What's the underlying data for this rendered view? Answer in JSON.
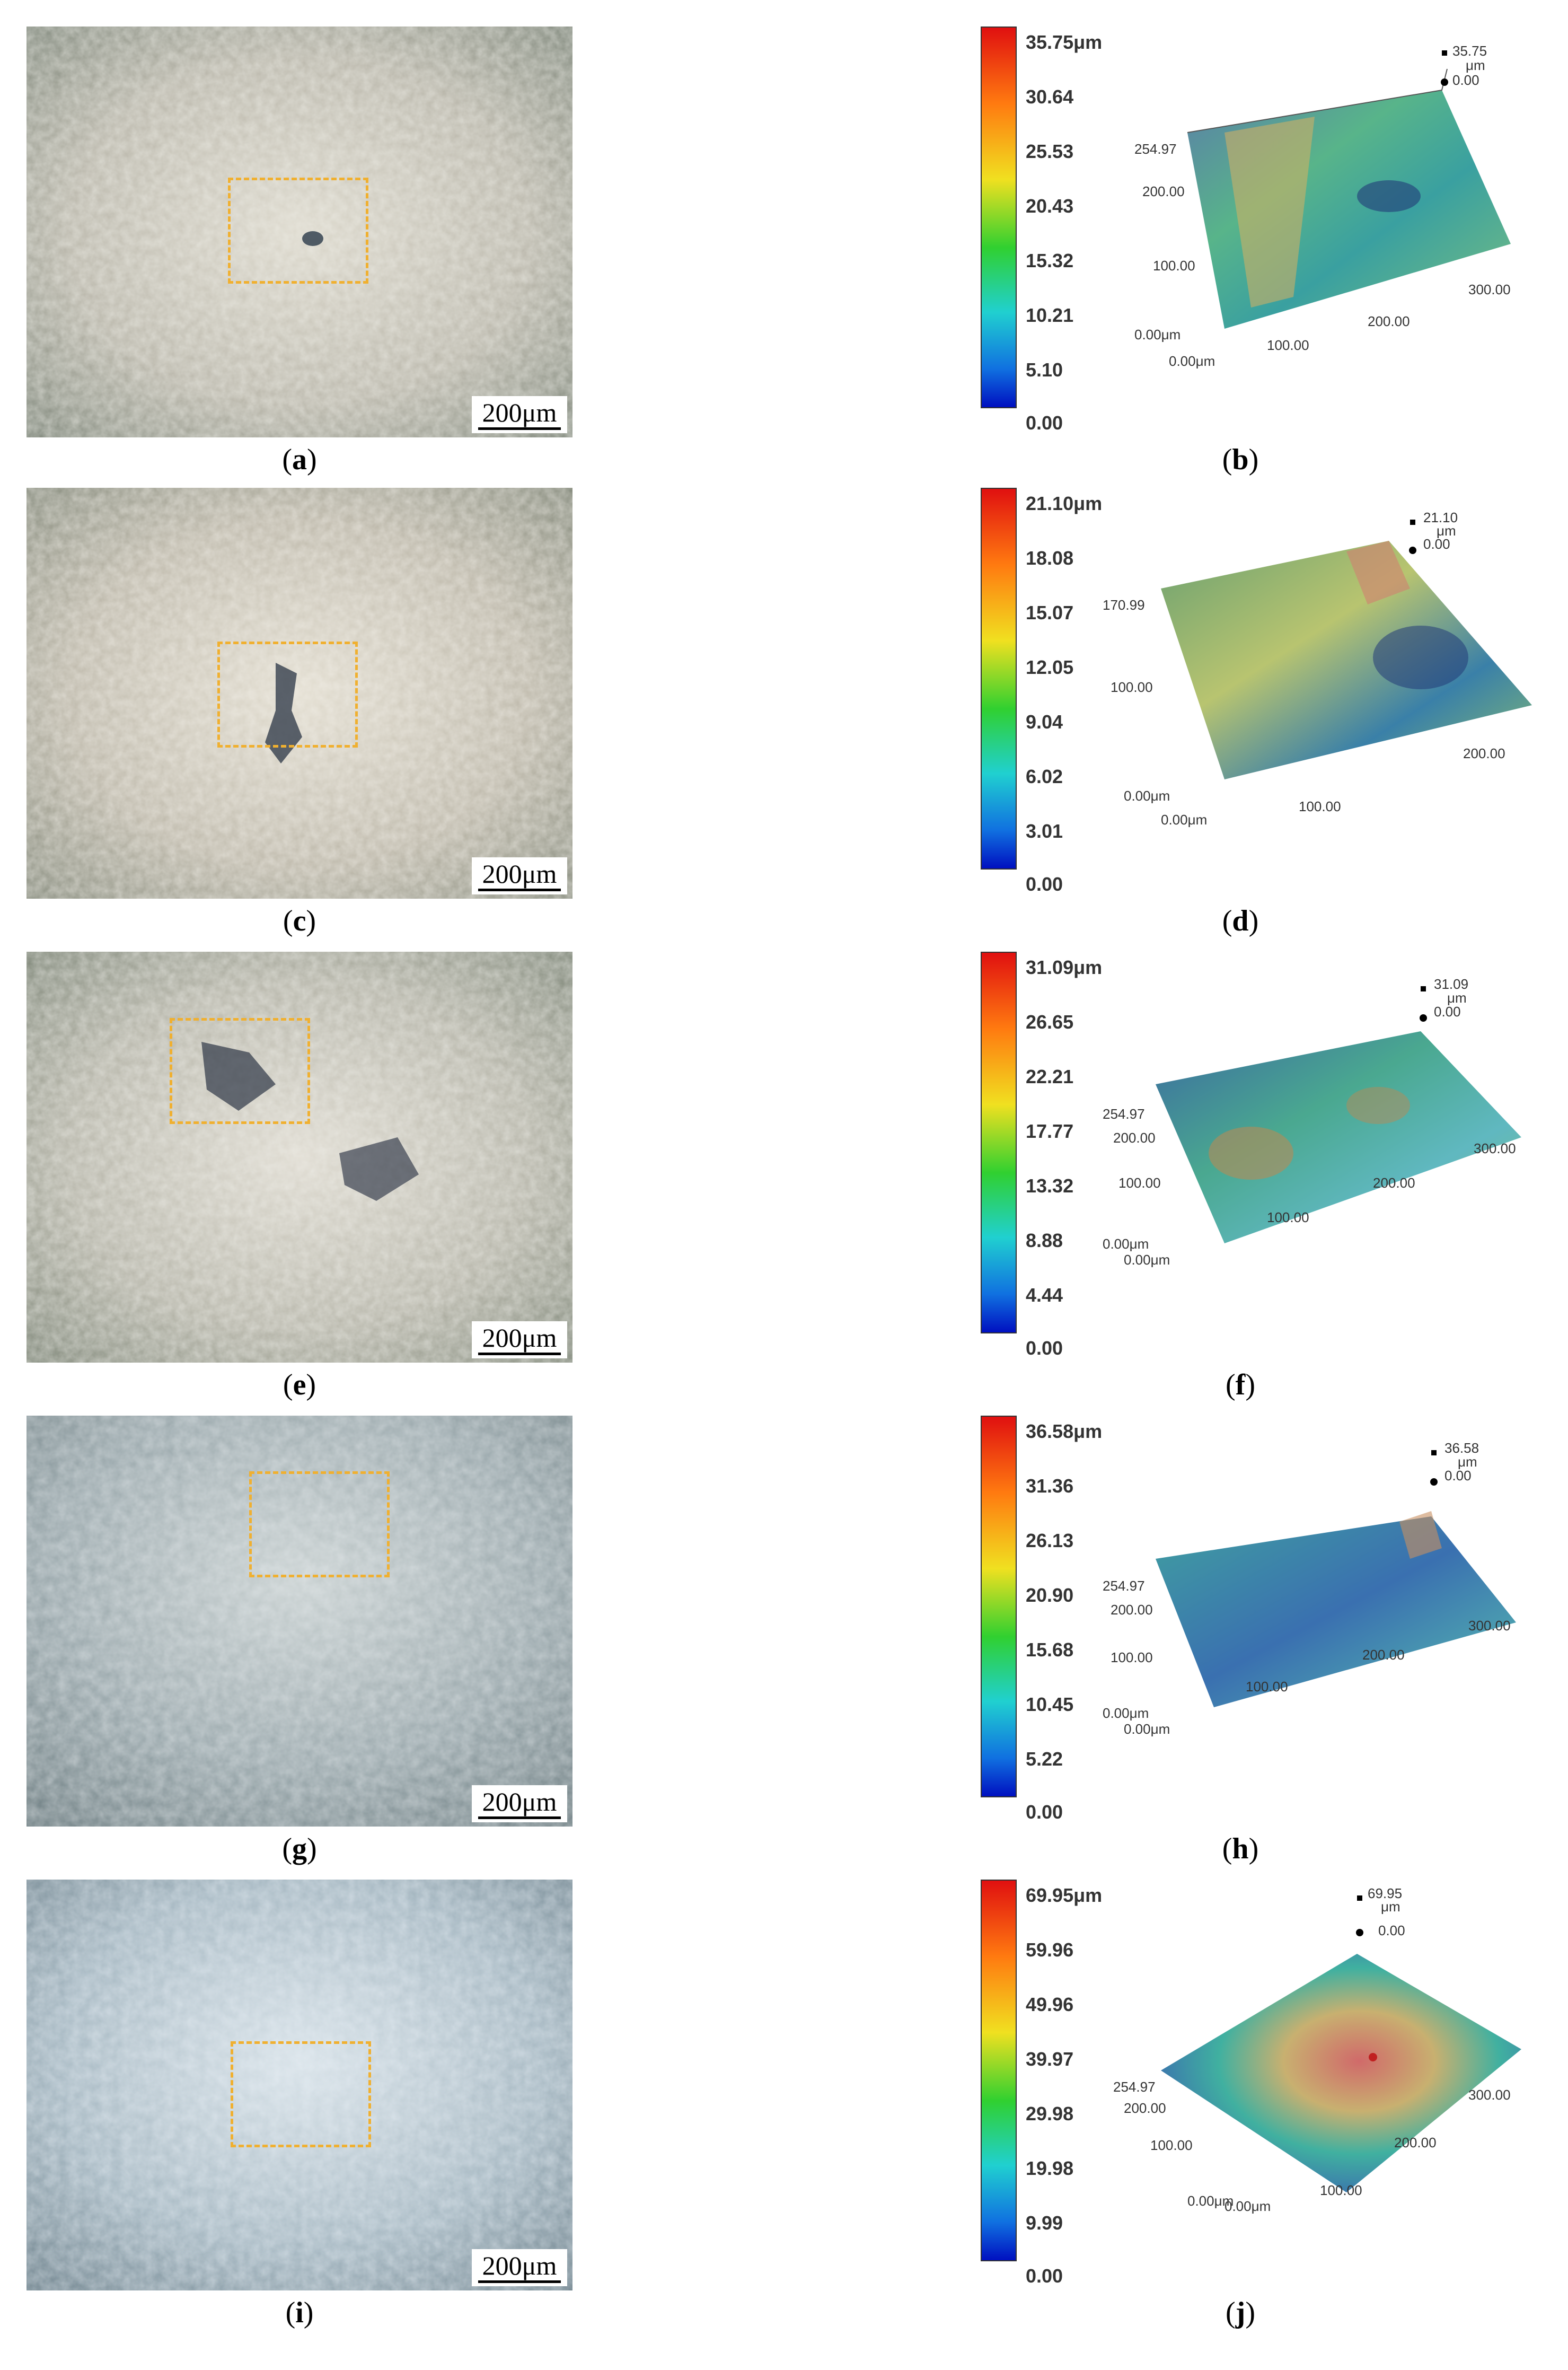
{
  "scale_label": "200μm",
  "panels": [
    {
      "photo_caption": "a",
      "map_caption": "b",
      "colorbar": [
        "35.75μm",
        "30.64",
        "25.53",
        "20.43",
        "15.32",
        "10.21",
        "5.10",
        "0.00"
      ],
      "axes": {
        "zmax": "35.75",
        "zunit": "μm",
        "zmin": "0.00",
        "y1": "254.97",
        "y2": "200.00",
        "y3": "100.00",
        "origin_y": "0.00μm",
        "origin_x": "0.00μm",
        "x1": "100.00",
        "x2": "200.00",
        "x3": "300.00"
      }
    },
    {
      "photo_caption": "c",
      "map_caption": "d",
      "colorbar": [
        "21.10μm",
        "18.08",
        "15.07",
        "12.05",
        "9.04",
        "6.02",
        "3.01",
        "0.00"
      ],
      "axes": {
        "zmax": "21.10",
        "zunit": "μm",
        "zmin": "0.00",
        "y1": "170.99",
        "y2": "",
        "y3": "100.00",
        "origin_y": "0.00μm",
        "origin_x": "0.00μm",
        "x1": "100.00",
        "x2": "200.00",
        "x3": ""
      }
    },
    {
      "photo_caption": "e",
      "map_caption": "f",
      "colorbar": [
        "31.09μm",
        "26.65",
        "22.21",
        "17.77",
        "13.32",
        "8.88",
        "4.44",
        "0.00"
      ],
      "axes": {
        "zmax": "31.09",
        "zunit": "μm",
        "zmin": "0.00",
        "y1": "254.97",
        "y2": "200.00",
        "y3": "100.00",
        "origin_y": "0.00μm",
        "origin_x": "0.00μm",
        "x1": "100.00",
        "x2": "200.00",
        "x3": "300.00"
      }
    },
    {
      "photo_caption": "g",
      "map_caption": "h",
      "colorbar": [
        "36.58μm",
        "31.36",
        "26.13",
        "20.90",
        "15.68",
        "10.45",
        "5.22",
        "0.00"
      ],
      "axes": {
        "zmax": "36.58",
        "zunit": "μm",
        "zmin": "0.00",
        "y1": "254.97",
        "y2": "200.00",
        "y3": "100.00",
        "origin_y": "0.00μm",
        "origin_x": "0.00μm",
        "x1": "100.00",
        "x2": "200.00",
        "x3": "300.00"
      }
    },
    {
      "photo_caption": "i",
      "map_caption": "j",
      "colorbar": [
        "69.95μm",
        "59.96",
        "49.96",
        "39.97",
        "29.98",
        "19.98",
        "9.99",
        "0.00"
      ],
      "axes": {
        "zmax": "69.95",
        "zunit": "μm",
        "zmin": "0.00",
        "y1": "254.97",
        "y2": "200.00",
        "y3": "100.00",
        "origin_y": "0.00μm",
        "origin_x": "0.00μm",
        "x1": "100.00",
        "x2": "200.00",
        "x3": "300.00"
      }
    }
  ]
}
